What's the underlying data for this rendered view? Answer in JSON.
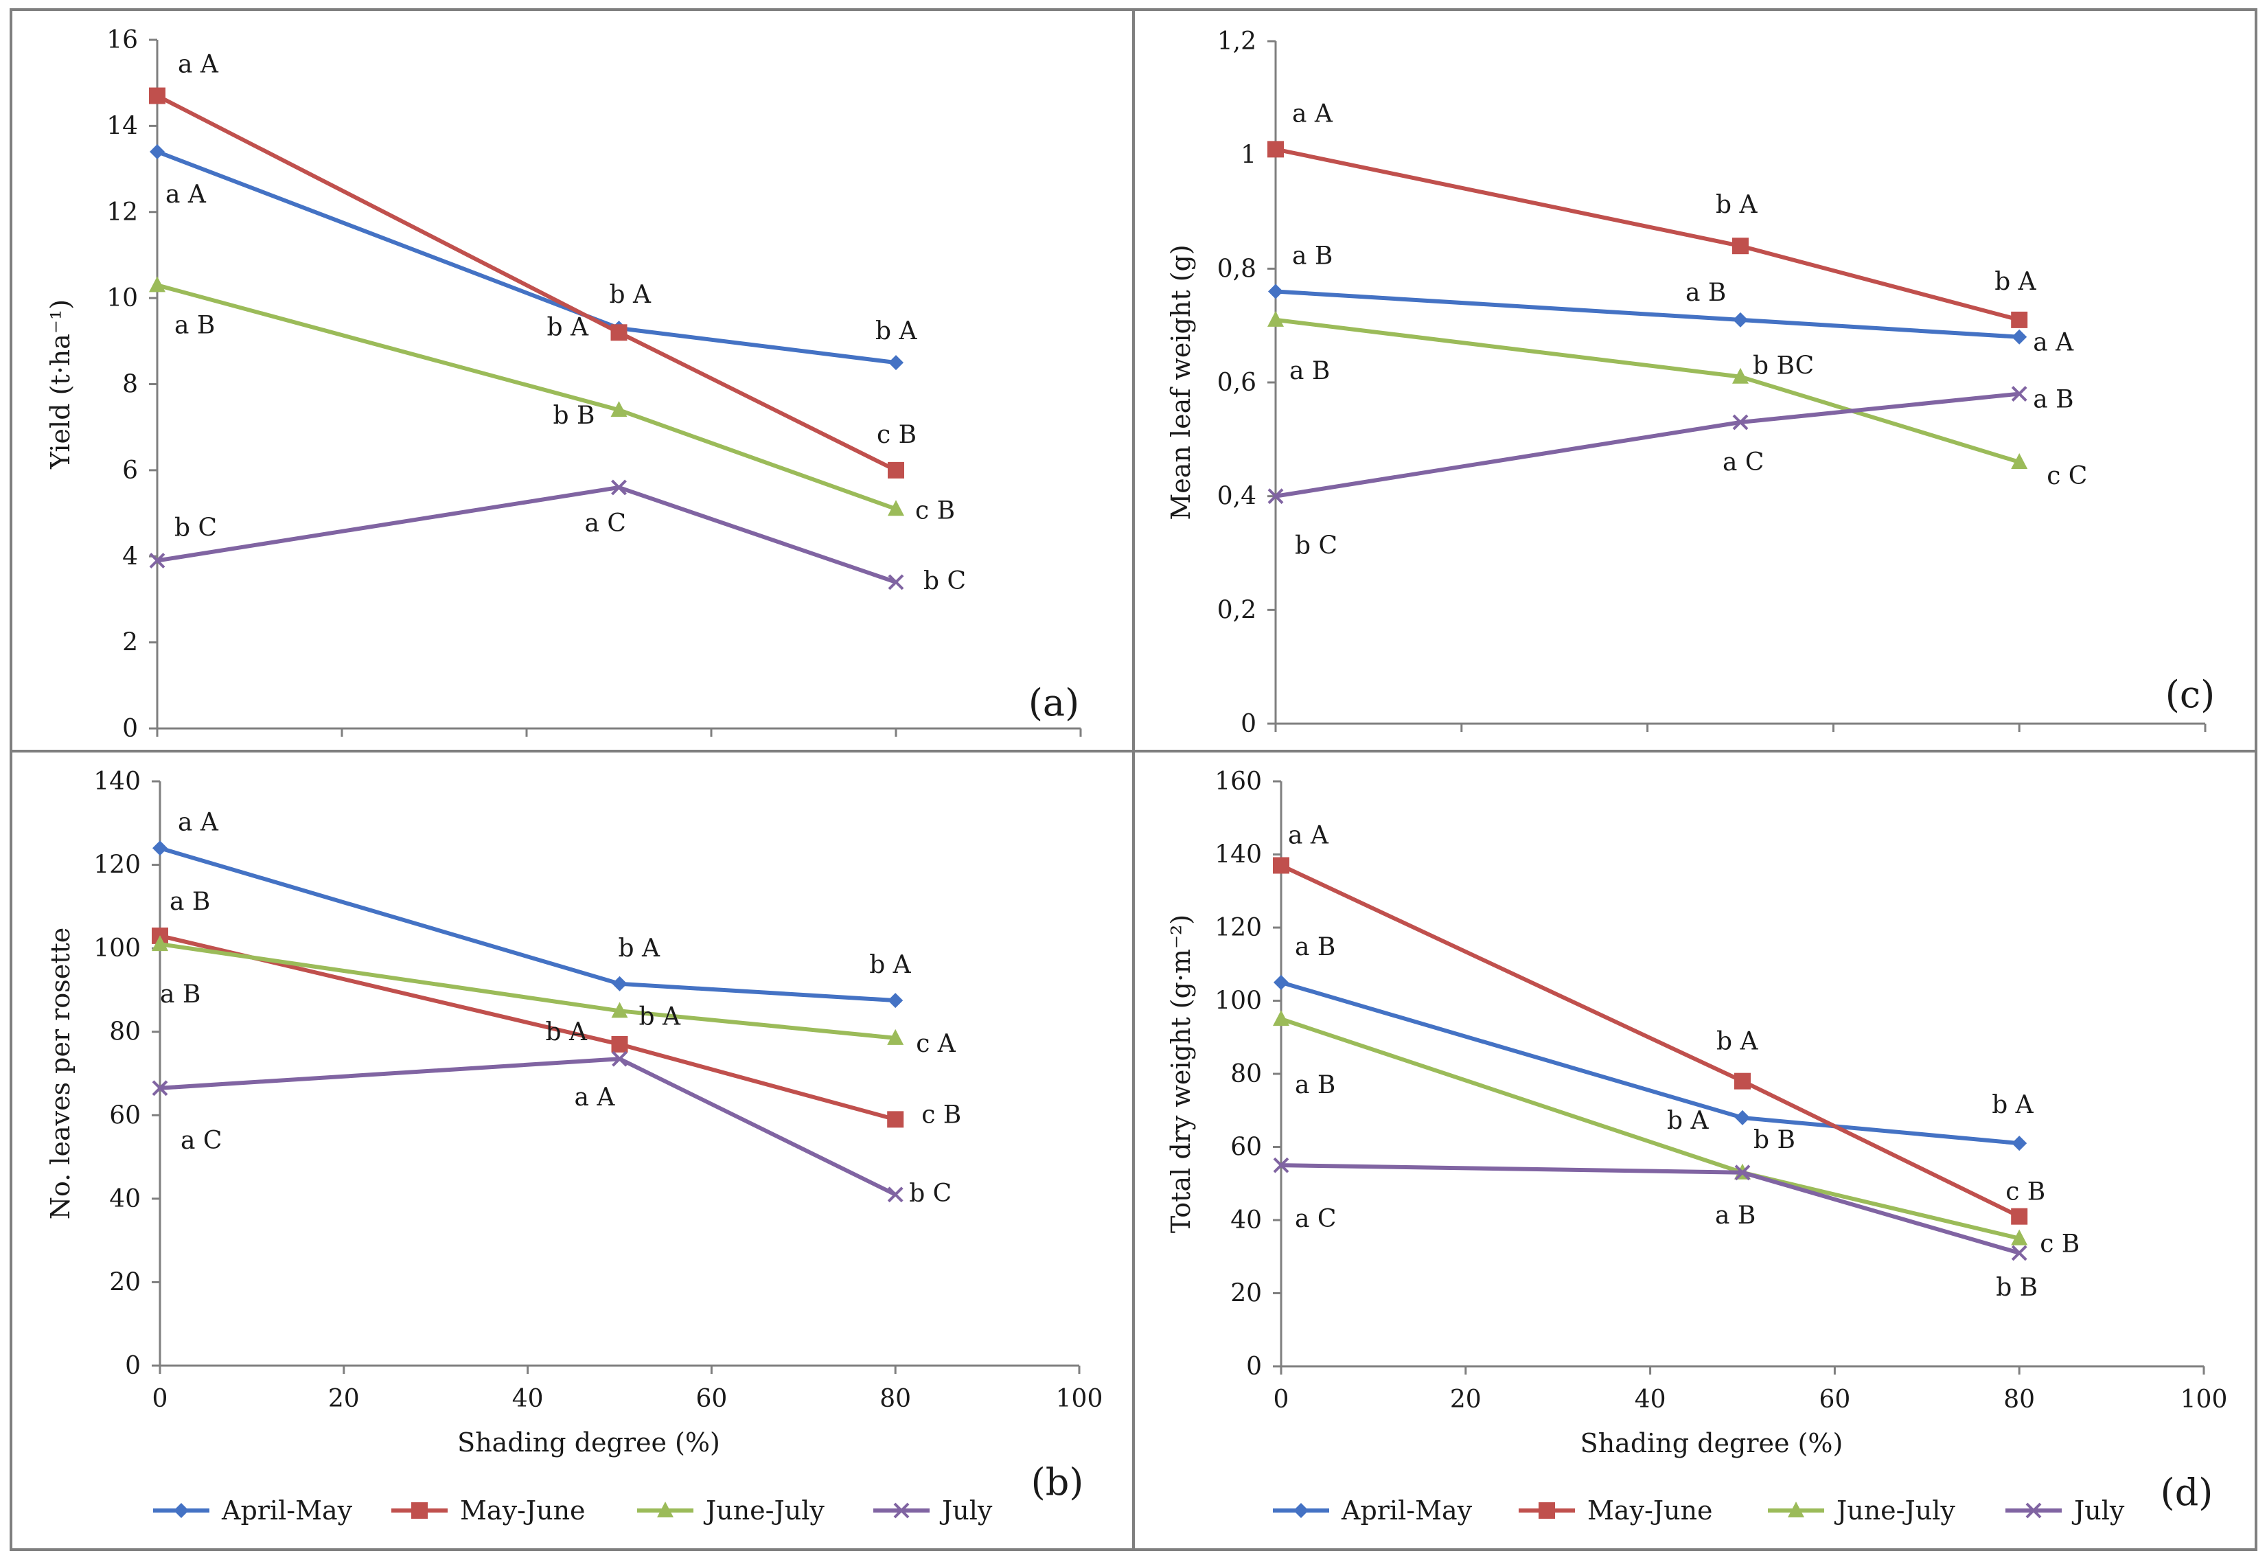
{
  "chart_data": [
    {
      "id": "a",
      "type": "line",
      "panel_label": "(a)",
      "title": "",
      "xlabel": "",
      "ylabel": "Yield (t·ha⁻¹)",
      "x": [
        0,
        50,
        80
      ],
      "xlim": [
        0,
        100
      ],
      "ylim": [
        0,
        16
      ],
      "yticks": [
        "0",
        "2",
        "4",
        "6",
        "8",
        "10",
        "12",
        "14",
        "16"
      ],
      "xticks": [],
      "series": [
        {
          "name": "April-May",
          "values": [
            13.4,
            9.3,
            8.5
          ],
          "annotations": [
            "a  A",
            "b  A",
            "b  A"
          ]
        },
        {
          "name": "May-June",
          "values": [
            14.7,
            9.2,
            6.0
          ],
          "annotations": [
            "a  A",
            "b  A",
            "c  B"
          ]
        },
        {
          "name": "June-July",
          "values": [
            10.3,
            7.4,
            5.1
          ],
          "annotations": [
            "a  B",
            "b  B",
            "c  B"
          ]
        },
        {
          "name": "July",
          "values": [
            3.9,
            5.6,
            3.4
          ],
          "annotations": [
            "b  C",
            "a  C",
            "b  C"
          ]
        }
      ]
    },
    {
      "id": "b",
      "type": "line",
      "panel_label": "(b)",
      "title": "",
      "xlabel": "Shading degree (%)",
      "ylabel": "No. leaves per rosette",
      "x": [
        0,
        50,
        80
      ],
      "xlim": [
        0,
        100
      ],
      "ylim": [
        0,
        140
      ],
      "yticks": [
        "0",
        "20",
        "40",
        "60",
        "80",
        "100",
        "120",
        "140"
      ],
      "xticks": [
        "0",
        "20",
        "40",
        "60",
        "80",
        "100"
      ],
      "series": [
        {
          "name": "April-May",
          "values": [
            124,
            91.5,
            87.5
          ],
          "annotations": [
            "a  A",
            "b  A",
            "b  A"
          ]
        },
        {
          "name": "May-June",
          "values": [
            103,
            77,
            59
          ],
          "annotations": [
            "a  B",
            "b  A",
            "c  B"
          ]
        },
        {
          "name": "June-July",
          "values": [
            101,
            85,
            78.5
          ],
          "annotations": [
            "a  B",
            "b  A",
            "c  A"
          ]
        },
        {
          "name": "July",
          "values": [
            66.5,
            73.5,
            41
          ],
          "annotations": [
            "a  C",
            "a  A",
            "b  C"
          ]
        }
      ]
    },
    {
      "id": "c",
      "type": "line",
      "panel_label": "(c)",
      "title": "",
      "xlabel": "",
      "ylabel": "Mean leaf weight (g)",
      "x": [
        0,
        50,
        80
      ],
      "xlim": [
        0,
        100
      ],
      "ylim": [
        0,
        1.2
      ],
      "yticks": [
        "0",
        "0,2",
        "0,4",
        "0,6",
        "0,8",
        "1",
        "1,2"
      ],
      "xticks": [],
      "series": [
        {
          "name": "April-May",
          "values": [
            0.76,
            0.71,
            0.68
          ],
          "annotations": [
            "a  B",
            "a  B",
            "a  A"
          ]
        },
        {
          "name": "May-June",
          "values": [
            1.01,
            0.84,
            0.71
          ],
          "annotations": [
            "a  A",
            "b  A",
            "b  A"
          ]
        },
        {
          "name": "June-July",
          "values": [
            0.71,
            0.61,
            0.46
          ],
          "annotations": [
            "a  B",
            "b  BC",
            "c  C"
          ]
        },
        {
          "name": "July",
          "values": [
            0.4,
            0.53,
            0.58
          ],
          "annotations": [
            "b  C",
            "a  C",
            "a  B"
          ]
        }
      ]
    },
    {
      "id": "d",
      "type": "line",
      "panel_label": "(d)",
      "title": "",
      "xlabel": "Shading degree (%)",
      "ylabel": "Total dry weight (g·m⁻²)",
      "x": [
        0,
        50,
        80
      ],
      "xlim": [
        0,
        100
      ],
      "ylim": [
        0,
        160
      ],
      "yticks": [
        "0",
        "20",
        "40",
        "60",
        "80",
        "100",
        "120",
        "140",
        "160"
      ],
      "xticks": [
        "0",
        "20",
        "40",
        "60",
        "80",
        "100"
      ],
      "series": [
        {
          "name": "April-May",
          "values": [
            105,
            68,
            61
          ],
          "annotations": [
            "a  B",
            "b  A",
            "b  A"
          ]
        },
        {
          "name": "May-June",
          "values": [
            137,
            78,
            41
          ],
          "annotations": [
            "a  A",
            "b  A",
            "c  B"
          ]
        },
        {
          "name": "June-July",
          "values": [
            95,
            53,
            35
          ],
          "annotations": [
            "a  B",
            "b  B",
            "c  B"
          ]
        },
        {
          "name": "July",
          "values": [
            55,
            53,
            31
          ],
          "annotations": [
            "a  C",
            "a  B",
            "b  B"
          ]
        }
      ]
    }
  ],
  "legend": [
    "April-May",
    "May-June",
    "June-July",
    "July"
  ],
  "colors": {
    "April-May": "#4472C4",
    "May-June": "#C0504D",
    "June-July": "#9BBB59",
    "July": "#8064A2"
  },
  "markers": {
    "April-May": "diamond",
    "May-June": "square",
    "June-July": "triangle",
    "July": "x"
  }
}
